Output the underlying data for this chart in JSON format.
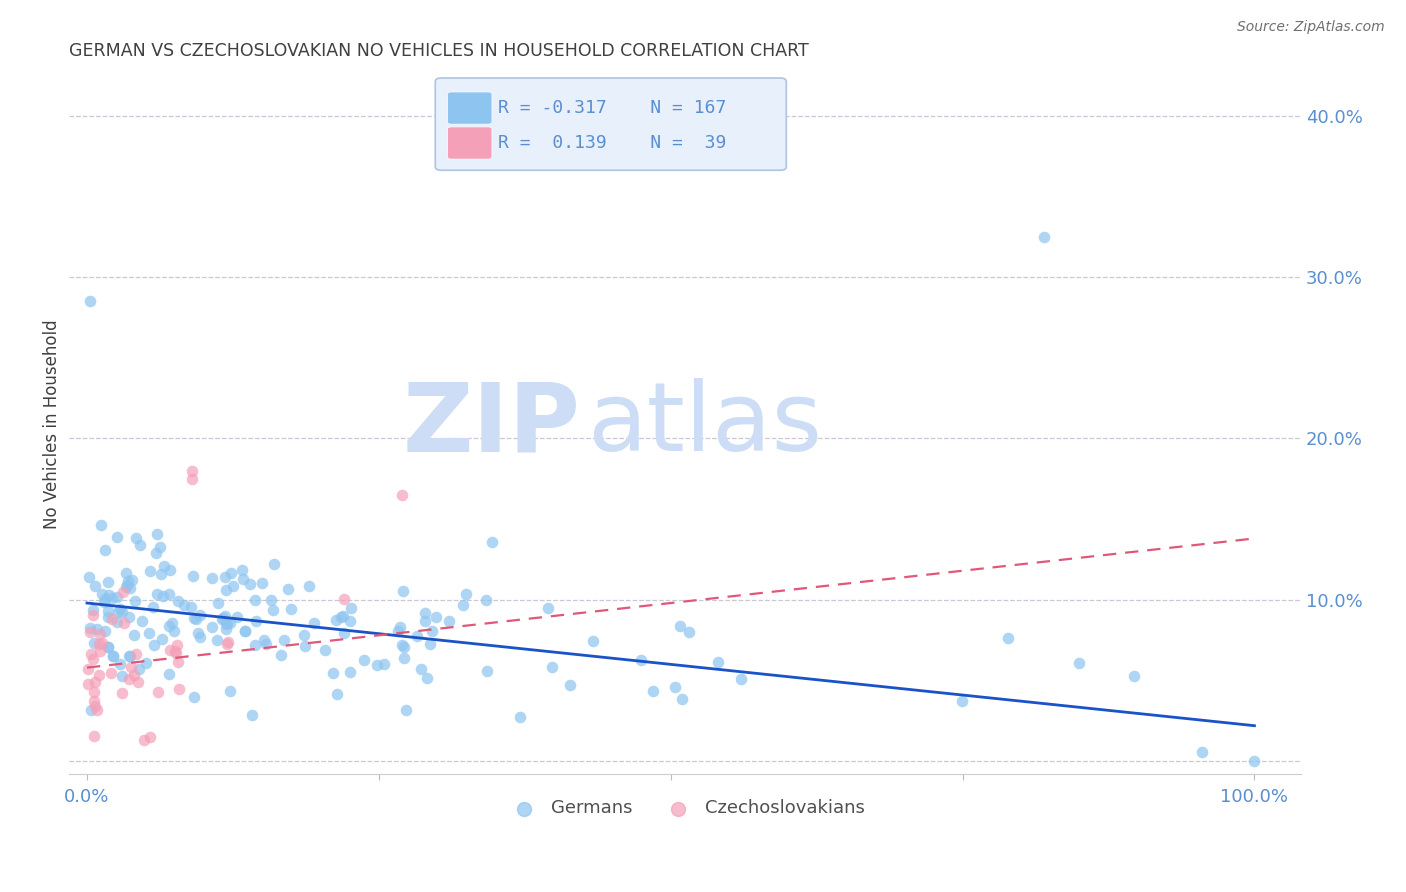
{
  "title": "GERMAN VS CZECHOSLOVAKIAN NO VEHICLES IN HOUSEHOLD CORRELATION CHART",
  "source": "Source: ZipAtlas.com",
  "ylabel": "No Vehicles in Household",
  "ytick_vals": [
    0.0,
    0.1,
    0.2,
    0.3,
    0.4
  ],
  "ytick_labels": [
    "",
    "10.0%",
    "20.0%",
    "30.0%",
    "40.0%"
  ],
  "xtick_vals": [
    0.0,
    0.25,
    0.5,
    0.75,
    1.0
  ],
  "xtick_labels": [
    "0.0%",
    "",
    "",
    "",
    "100.0%"
  ],
  "xlim": [
    -0.015,
    1.04
  ],
  "ylim": [
    -0.008,
    0.425
  ],
  "german_color": "#8dc4f0",
  "german_edge_color": "#8dc4f0",
  "czech_color": "#f4a0b8",
  "czech_edge_color": "#f4a0b8",
  "german_line_color": "#1a52c8",
  "czech_line_color": "#e05878",
  "german_R": -0.317,
  "german_N": 167,
  "czech_R": 0.139,
  "czech_N": 39,
  "german_line_x0": 0.0,
  "german_line_x1": 1.0,
  "german_line_y0": 0.098,
  "german_line_y1": 0.022,
  "czech_line_x0": 0.0,
  "czech_line_x1": 1.0,
  "czech_line_y0": 0.058,
  "czech_line_y1": 0.138,
  "watermark": "ZIPatlas",
  "watermark_color": "#ccddf5",
  "background_color": "#ffffff",
  "grid_color": "#c8c8d8",
  "title_color": "#404040",
  "axis_label_color": "#5a8fd0",
  "legend_face_color": "#e8f0fc",
  "legend_edge_color": "#b0c4e0",
  "legend_text_color": "#5a8fd0",
  "bottom_legend_color": "#505050",
  "point_size": 70,
  "point_alpha": 0.7
}
